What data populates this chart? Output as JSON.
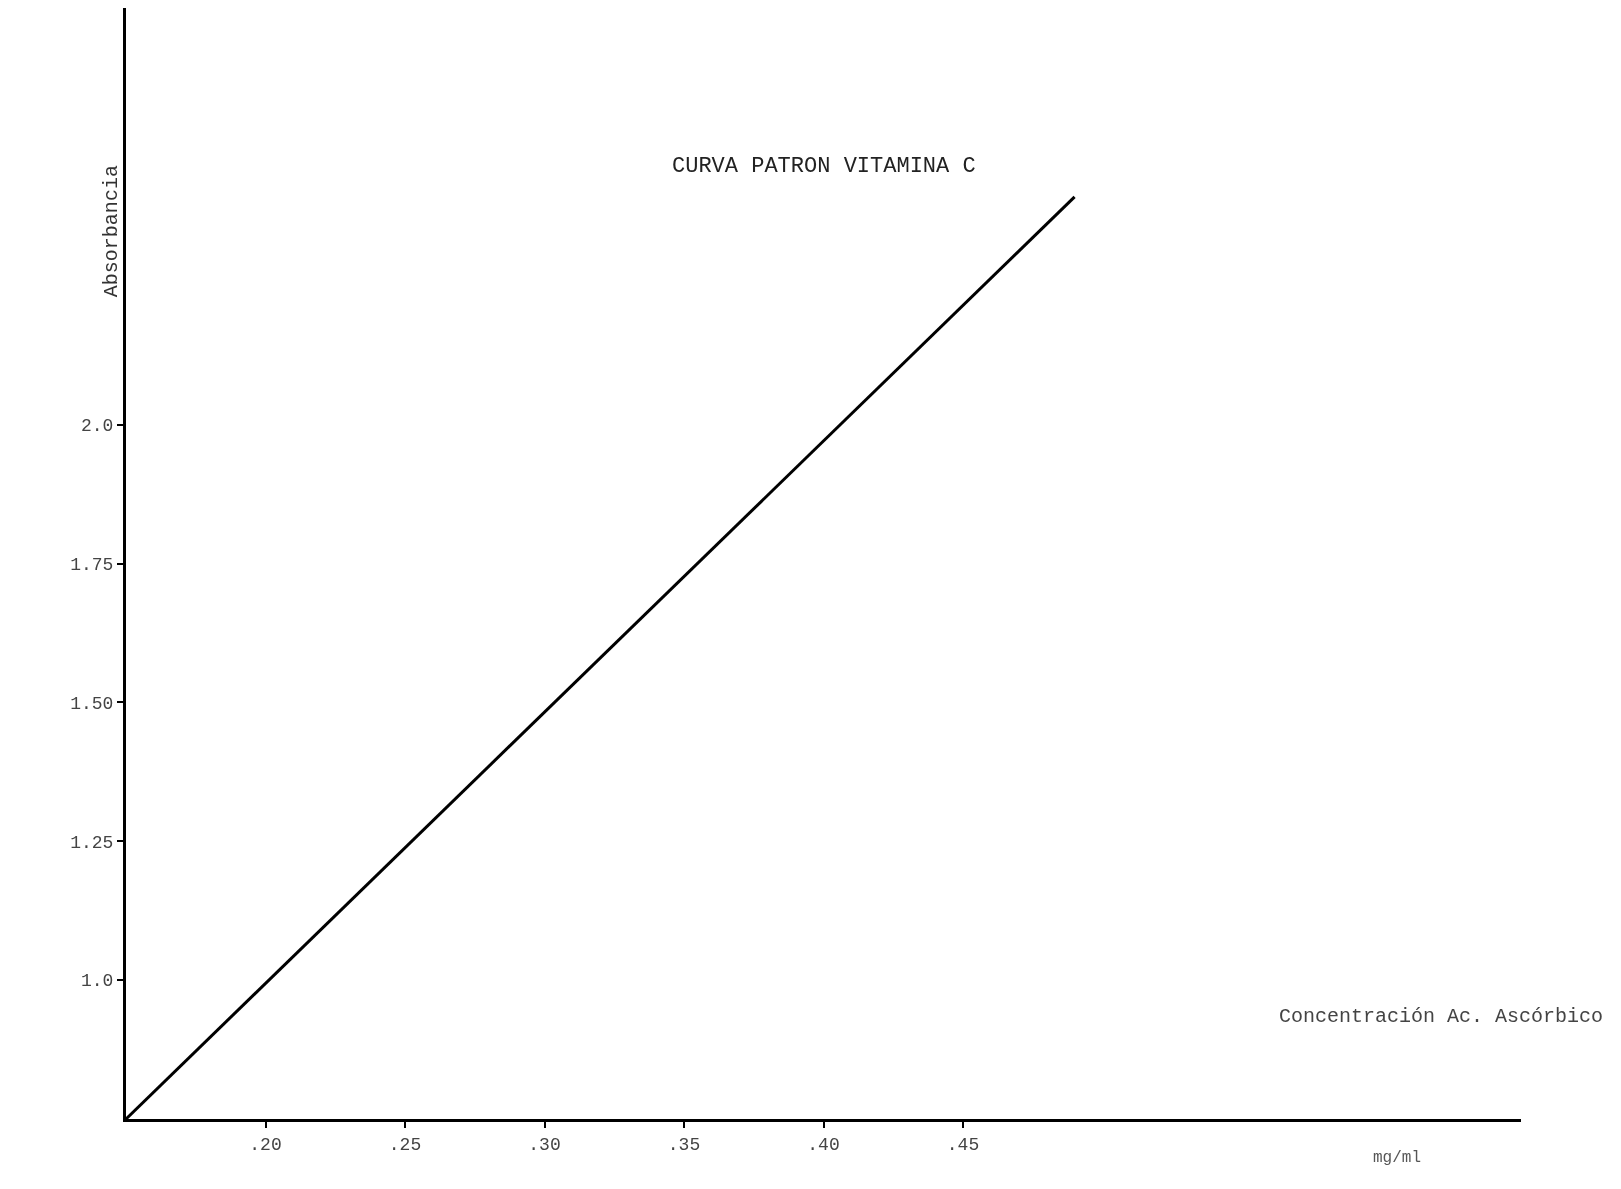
{
  "chart_data": {
    "type": "line",
    "title": "CURVA PATRON VITAMINA C",
    "xlabel": "Concentración Ac. Ascórbico",
    "ylabel": "Absorbancia",
    "annotations": [
      "mg/ml"
    ],
    "x": [
      0.15,
      0.49
    ],
    "series": [
      {
        "color": "#000000",
        "values": [
          0.75,
          2.41
        ]
      }
    ],
    "xlim": [
      0.15,
      0.65
    ],
    "ylim": [
      0.75,
      2.75
    ],
    "xticks": [
      {
        "value": 0.2,
        "label": ".20"
      },
      {
        "value": 0.25,
        "label": ".25"
      },
      {
        "value": 0.3,
        "label": ".30"
      },
      {
        "value": 0.35,
        "label": ".35"
      },
      {
        "value": 0.4,
        "label": ".40"
      },
      {
        "value": 0.45,
        "label": ".45"
      }
    ],
    "yticks": [
      {
        "value": 1.0,
        "label": "1.0"
      },
      {
        "value": 1.25,
        "label": "1.25"
      },
      {
        "value": 1.5,
        "label": "1.50"
      },
      {
        "value": 1.75,
        "label": "1.75"
      },
      {
        "value": 2.0,
        "label": "2.0"
      }
    ],
    "marker": "none",
    "line_style": "solid"
  }
}
